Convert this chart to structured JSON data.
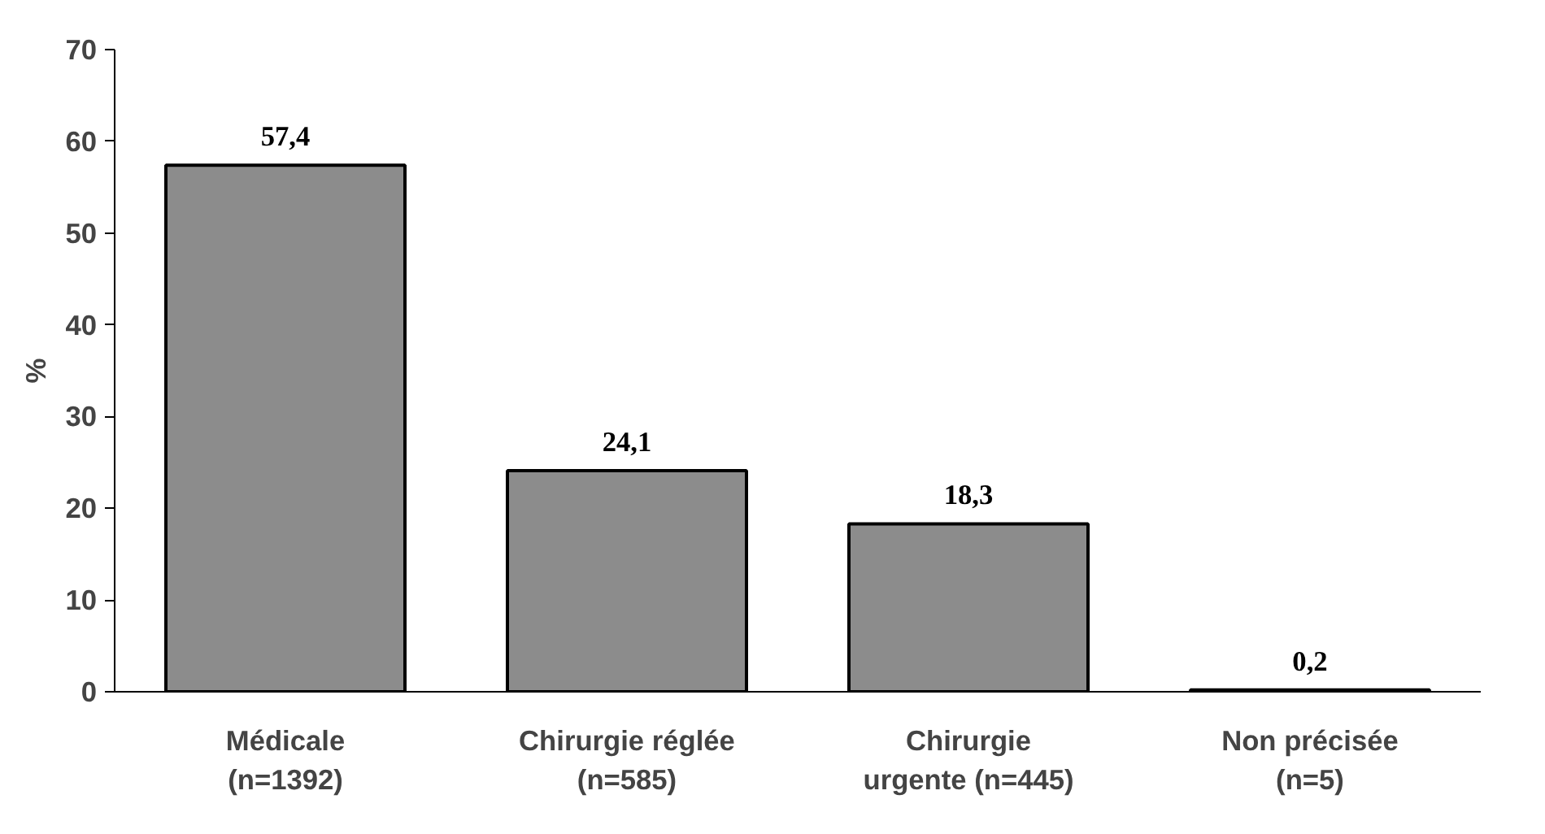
{
  "chart_data": {
    "type": "bar",
    "ylabel": "%",
    "categories": [
      "Médicale\n(n=1392)",
      "Chirurgie réglée\n(n=585)",
      "Chirurgie\nurgente (n=445)",
      "Non précisée\n(n=5)"
    ],
    "values": [
      57.4,
      24.1,
      18.3,
      0.2
    ],
    "value_labels": [
      "57,4",
      "24,1",
      "18,3",
      "0,2"
    ],
    "color": "#8c8c8c",
    "ylim": [
      0,
      70
    ],
    "yticks": [
      0,
      10,
      20,
      30,
      40,
      50,
      60,
      70
    ],
    "grid": false
  }
}
